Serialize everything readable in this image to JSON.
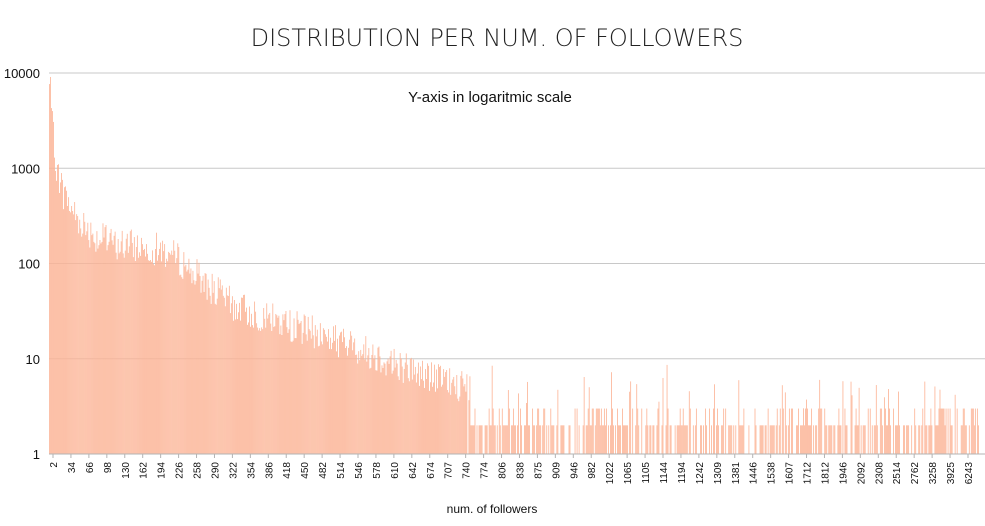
{
  "chart_data": {
    "type": "bar",
    "title": "DISTRIBUTION PER NUM. OF FOLLOWERS",
    "annotation": "Y-axis in logaritmic scale",
    "xlabel": "num. of followers",
    "ylabel": "",
    "yscale": "log",
    "ylim": [
      1,
      10000
    ],
    "y_ticks": [
      "1",
      "10",
      "100",
      "1000",
      "10000"
    ],
    "x_tick_labels": [
      "2",
      "34",
      "66",
      "98",
      "130",
      "162",
      "194",
      "226",
      "258",
      "290",
      "322",
      "354",
      "386",
      "418",
      "450",
      "482",
      "514",
      "546",
      "578",
      "610",
      "642",
      "674",
      "707",
      "740",
      "774",
      "806",
      "838",
      "875",
      "909",
      "946",
      "982",
      "1022",
      "1065",
      "1105",
      "1144",
      "1194",
      "1242",
      "1309",
      "1381",
      "1446",
      "1538",
      "1607",
      "1712",
      "1812",
      "1946",
      "2092",
      "2308",
      "2514",
      "2762",
      "3258",
      "3925",
      "6243"
    ],
    "bar_color": "#fcb395",
    "gridlines": true,
    "legend": "none",
    "envelope": {
      "description": "approximate count of users per follower value, sampled along the category axis (position = fraction of categories, count in users)",
      "positions": [
        0.0,
        0.004,
        0.008,
        0.015,
        0.03,
        0.05,
        0.07,
        0.1,
        0.12,
        0.14,
        0.17,
        0.2,
        0.25,
        0.3,
        0.35,
        0.4,
        0.45,
        0.5,
        0.55,
        0.6,
        0.65,
        0.7,
        0.75,
        0.8,
        0.85,
        0.9,
        0.95,
        1.0
      ],
      "counts": [
        9000,
        2200,
        1000,
        550,
        300,
        190,
        160,
        150,
        140,
        110,
        60,
        35,
        24,
        17,
        11,
        7,
        5,
        4,
        3.5,
        3,
        2.6,
        2.4,
        2.2,
        2.0,
        1.8,
        1.6,
        1.4,
        1.3
      ]
    }
  }
}
